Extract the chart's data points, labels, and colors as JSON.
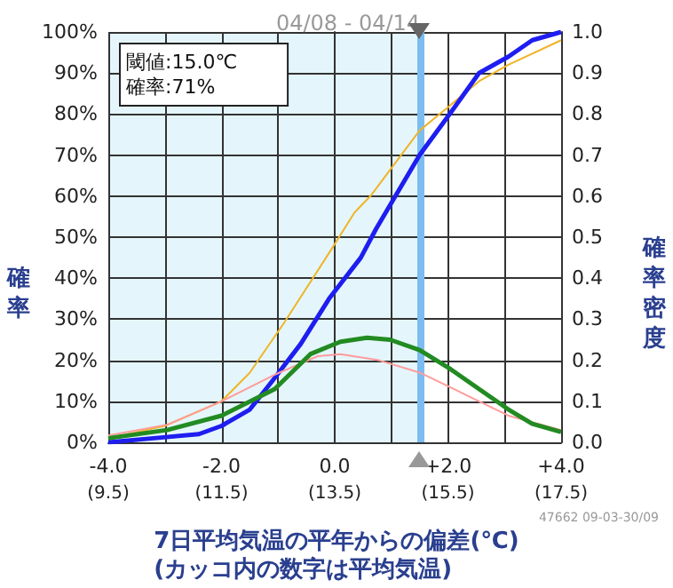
{
  "chart_data": {
    "type": "line",
    "title": "04/08 - 04/14",
    "xlabel": "7日平均気温の平年からの偏差(℃)\n(カッコ内の数字は平均気温)",
    "ylabel": "確率",
    "y2label": "確率密度",
    "annotations": [
      "閾値:15.0℃\n確率:71%",
      "47662 09-03-30/09"
    ],
    "xlim": [
      -4,
      4
    ],
    "xticks": [
      {
        "value": -4,
        "label": "-4.0"
      },
      {
        "value": -3,
        "label": null
      },
      {
        "value": -2,
        "label": "-2.0"
      },
      {
        "value": -1,
        "label": null
      },
      {
        "value": 0,
        "label": "0.0"
      },
      {
        "value": 1,
        "label": null
      },
      {
        "value": 2,
        "label": "+2.0"
      },
      {
        "value": 3,
        "label": null
      },
      {
        "value": 4,
        "label": "+4.0"
      }
    ],
    "x2lim": [
      9.5,
      17.5
    ],
    "x2ticks": [
      {
        "value": 9.5,
        "label": "(9.5)"
      },
      {
        "value": 11.5,
        "label": "(11.5)"
      },
      {
        "value": 13.5,
        "label": "(13.5)"
      },
      {
        "value": 15.5,
        "label": "(15.5)"
      },
      {
        "value": 17.5,
        "label": "(17.5)"
      }
    ],
    "ylim": [
      0,
      100
    ],
    "yticks": [
      {
        "value": 0,
        "label": "0%"
      },
      {
        "value": 10,
        "label": "10%"
      },
      {
        "value": 20,
        "label": "20%"
      },
      {
        "value": 30,
        "label": "30%"
      },
      {
        "value": 40,
        "label": "40%"
      },
      {
        "value": 50,
        "label": "50%"
      },
      {
        "value": 60,
        "label": "60%"
      },
      {
        "value": 70,
        "label": "70%"
      },
      {
        "value": 80,
        "label": "80%"
      },
      {
        "value": 90,
        "label": "90%"
      },
      {
        "value": 100,
        "label": "100%"
      }
    ],
    "y2lim": [
      0,
      1
    ],
    "y2ticks": [
      {
        "value": 0,
        "label": "0.0"
      },
      {
        "value": 0.1,
        "label": "0.1"
      },
      {
        "value": 0.2,
        "label": "0.2"
      },
      {
        "value": 0.3,
        "label": "0.3"
      },
      {
        "value": 0.4,
        "label": "0.4"
      },
      {
        "value": 0.5,
        "label": "0.5"
      },
      {
        "value": 0.6,
        "label": "0.6"
      },
      {
        "value": 0.7,
        "label": "0.7"
      },
      {
        "value": 0.8,
        "label": "0.8"
      },
      {
        "value": 0.9,
        "label": "0.9"
      },
      {
        "value": 1,
        "label": "1.0"
      }
    ],
    "grid": true,
    "bands": [
      {
        "axis": "x",
        "from": -4,
        "to": 1.5,
        "color": "#e4f6fc"
      }
    ],
    "ref_lines": [
      {
        "axis": "x",
        "value": 1.5,
        "color": "#7cbcf0"
      }
    ],
    "series": [
      {
        "color": "#f0b428",
        "x": [
          -4,
          -3,
          -2,
          -1.5,
          -0.9,
          -0.06,
          0.35,
          0.63,
          1.5,
          2.03,
          2.55,
          3.07,
          4
        ],
        "values": [
          1,
          4,
          10,
          17,
          29,
          47,
          56,
          60,
          76,
          82,
          88,
          92,
          98
        ]
      },
      {
        "color": "#1e1ef0",
        "x": [
          -4,
          -3.2,
          -2.4,
          -2.0,
          -1.5,
          -1.1,
          -0.6,
          -0.1,
          0.46,
          0.73,
          1.5,
          2.03,
          2.55,
          3.07,
          3.49,
          4
        ],
        "values": [
          0,
          1,
          2,
          4,
          8,
          15,
          24,
          35,
          45,
          52,
          70,
          80,
          90,
          94,
          98,
          100
        ]
      },
      {
        "color": "#ff9c9c",
        "axis": "y2",
        "x": [
          -4,
          -2.96,
          -2.0,
          -1.06,
          -0.3,
          0.1,
          0.78,
          1.5,
          2.03,
          2.55,
          3.07,
          4
        ],
        "values": [
          0.017,
          0.043,
          0.1,
          0.165,
          0.21,
          0.215,
          0.2,
          0.17,
          0.135,
          0.1,
          0.065,
          0.03
        ]
      },
      {
        "color": "#228b22",
        "axis": "y2",
        "x": [
          -4,
          -2.96,
          -2.0,
          -1.06,
          -0.43,
          0.1,
          0.57,
          0.98,
          1.5,
          2.03,
          2.55,
          3.07,
          3.49,
          4
        ],
        "values": [
          0.01,
          0.03,
          0.065,
          0.13,
          0.215,
          0.245,
          0.255,
          0.25,
          0.225,
          0.18,
          0.13,
          0.08,
          0.045,
          0.025
        ]
      }
    ]
  }
}
